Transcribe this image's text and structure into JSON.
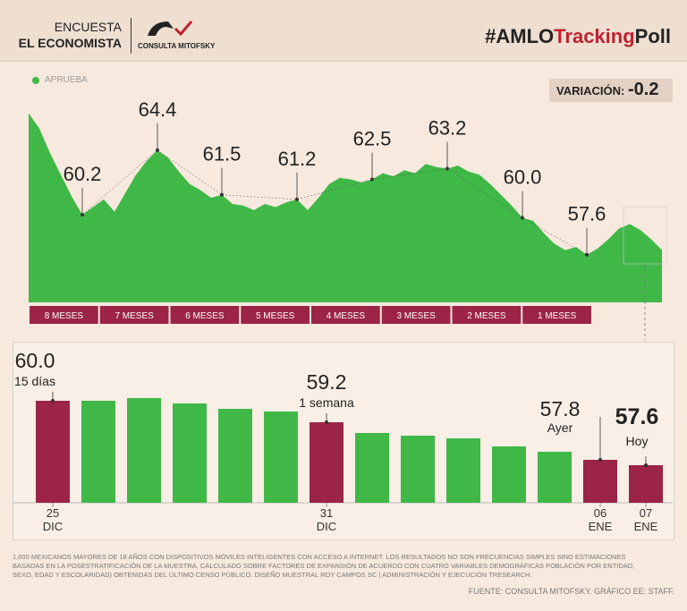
{
  "header": {
    "line1": "ENCUESTA",
    "line2": "EL ECONOMISTA",
    "logo": "CONSULTA MITOFSKY",
    "hashtag_prefix": "#AMLO",
    "hashtag_mid": "Tracking",
    "hashtag_suffix": "Poll"
  },
  "chart_data": [
    {
      "type": "area",
      "series": [
        {
          "name": "APRUEBA",
          "color": "#3fb848",
          "values": [
            66.8,
            65.8,
            64.2,
            62.8,
            61.4,
            60.2,
            60.7,
            61.2,
            60.4,
            61.6,
            62.8,
            63.7,
            64.4,
            63.9,
            63.0,
            62.2,
            61.8,
            61.3,
            61.5,
            60.9,
            60.8,
            60.5,
            60.9,
            60.7,
            61.0,
            61.2,
            60.5,
            61.3,
            62.2,
            62.6,
            62.5,
            62.3,
            62.5,
            62.9,
            62.7,
            63.1,
            62.9,
            63.5,
            63.3,
            63.2,
            63.4,
            63.0,
            62.8,
            62.2,
            61.5,
            60.8,
            60.0,
            59.8,
            59.0,
            58.3,
            57.9,
            58.1,
            57.6,
            58.0,
            58.6,
            59.3,
            59.6,
            59.2,
            58.6,
            57.9
          ],
          "value_labels": [
            null,
            null,
            null,
            null,
            null,
            "60.2",
            null,
            null,
            null,
            null,
            null,
            null,
            "64.4",
            null,
            null,
            null,
            null,
            null,
            "61.5",
            null,
            null,
            null,
            null,
            null,
            null,
            "61.2",
            null,
            null,
            null,
            null,
            null,
            null,
            "62.5",
            null,
            null,
            null,
            null,
            null,
            null,
            "63.2",
            null,
            null,
            null,
            null,
            null,
            null,
            "60.0",
            null,
            null,
            null,
            null,
            null,
            "57.6",
            null,
            null,
            null,
            null,
            null,
            null,
            null
          ]
        }
      ],
      "ylim": [
        54.5,
        68
      ],
      "variation_label": "VARIACIÓN:",
      "variation": -0.2,
      "periods": [
        "8 MESES",
        "7 MESES",
        "6 MESES",
        "5 MESES",
        "4 MESES",
        "3 MESES",
        "2 MESES",
        "1 MESES"
      ]
    },
    {
      "type": "bar",
      "categories": [
        "25\nDIC",
        null,
        null,
        null,
        null,
        null,
        "31\nDIC",
        null,
        null,
        null,
        null,
        null,
        "06\nENE",
        "07\nENE"
      ],
      "values": [
        60.0,
        60.0,
        60.1,
        59.9,
        59.7,
        59.6,
        59.2,
        58.8,
        58.7,
        58.6,
        58.3,
        58.1,
        57.8,
        57.6
      ],
      "value_labels": [
        "60.0",
        null,
        null,
        null,
        null,
        null,
        "59.2",
        null,
        null,
        null,
        null,
        null,
        "57.8",
        "57.6"
      ],
      "annotations": [
        "15 días",
        null,
        null,
        null,
        null,
        null,
        "1 semana",
        null,
        null,
        null,
        null,
        null,
        "Ayer",
        "Hoy"
      ],
      "colors": [
        "#9b2447",
        "#3fb848",
        "#3fb848",
        "#3fb848",
        "#3fb848",
        "#3fb848",
        "#9b2447",
        "#3fb848",
        "#3fb848",
        "#3fb848",
        "#3fb848",
        "#3fb848",
        "#9b2447",
        "#9b2447"
      ],
      "ylim": [
        56.2,
        61.6
      ]
    }
  ],
  "footer": {
    "note": "1,000 MEXICANOS MAYORES DE 18 AÑOS CON DISPOSITIVOS MÓVILES INTELIGENTES CON ACCESO A INTERNET. LOS RESULTADOS NO SON FRECUENCIAS SIMPLES SINO ESTIMACIONES BASADAS EN LA POSESTRATIFICACIÓN DE LA MUESTRA, CALCULADO SOBRE FACTORES DE EXPANSIÓN DE ACUERDO CON CUATRO VARIABLES DEMOGRÁFICAS POBLACIÓN POR ENTIDAD, SEXO, EDAD Y ESCOLARIDAD) OBTENIDAS DEL ÚLTIMO CENSO PÚBLICO. DISEÑO MUESTRAL ROY CAMPOS SC | ADMINISTRACIÓN Y EJECUCIÓN TRESEARCH.",
    "source": "FUENTE: CONSULTA MITOFSKY. GRÁFICO EE: STAFF."
  }
}
